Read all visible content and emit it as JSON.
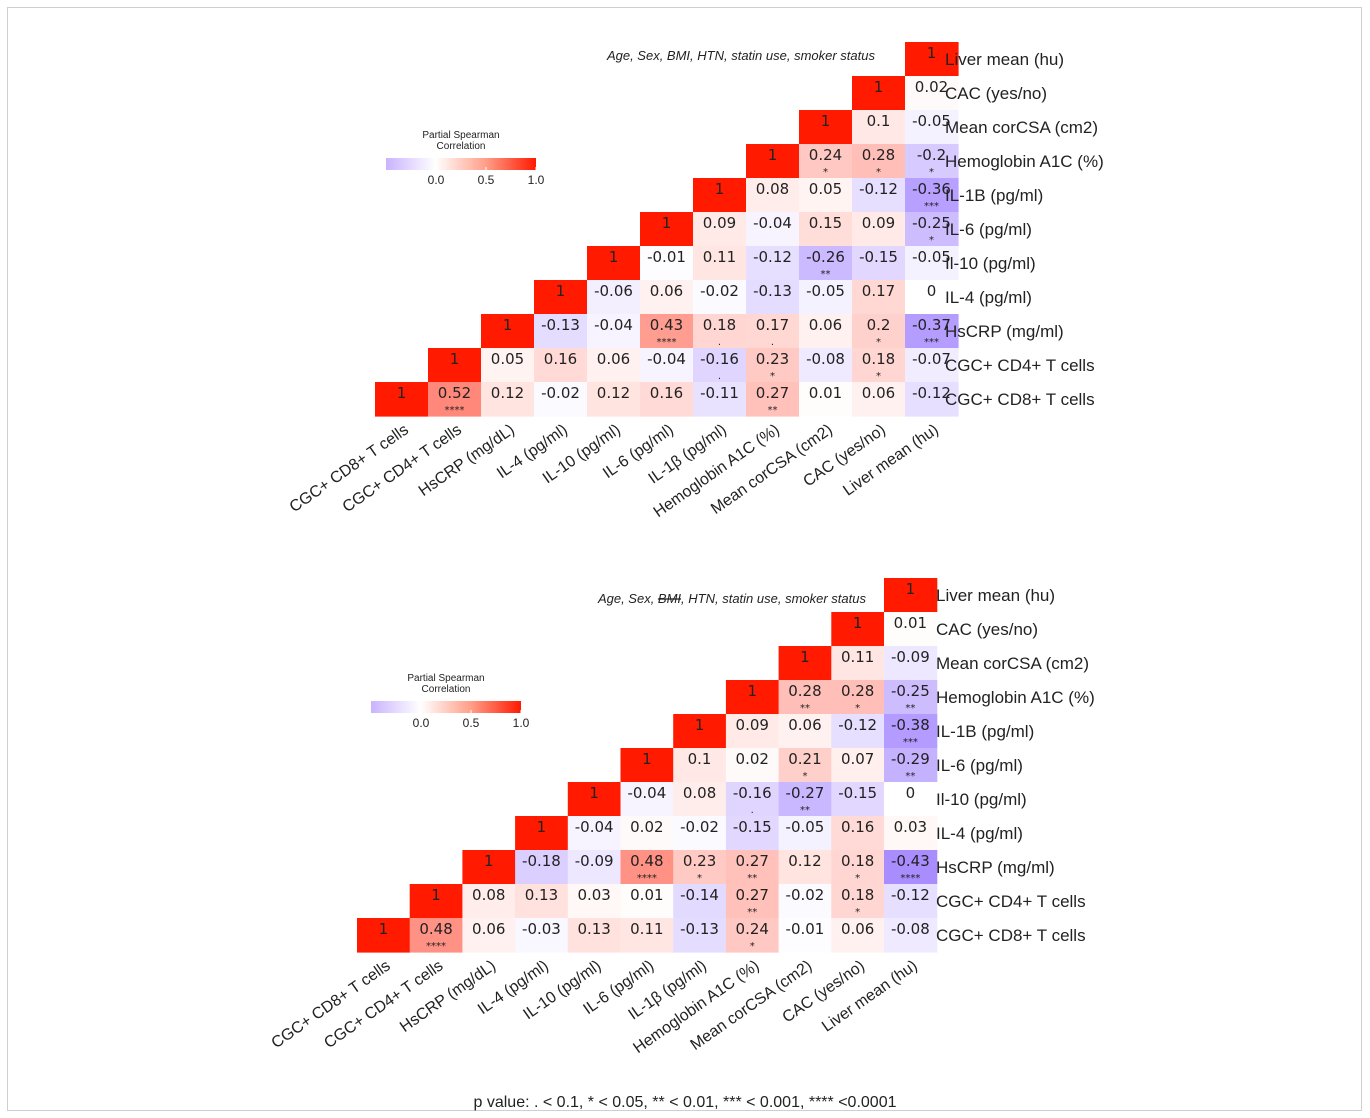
{
  "footnote": "p value:    . < 0.1, * < 0.05, ** < 0.01, *** < 0.001, **** <0.0001",
  "colors": {
    "low": "#9b7bff",
    "mid": "#ffffff",
    "high": "#ff1a00"
  },
  "chart_data": [
    {
      "type": "heatmap",
      "title": "",
      "covariates": {
        "prefix": "Age, Sex, ",
        "struck": "",
        "bmi": "BMI",
        "suffix": ", HTN, statin use, smoker status"
      },
      "legend": {
        "title_lines": [
          "Partial Spearman",
          "Correlation"
        ],
        "ticks": [
          "0.0",
          "0.5",
          "1.0"
        ],
        "range": [
          -0.5,
          1.0
        ]
      },
      "row_labels": [
        "Liver mean (hu)",
        "CAC (yes/no)",
        "Mean corCSA (cm2)",
        "Hemoglobin A1C (%)",
        "IL-1B (pg/ml)",
        "IL-6 (pg/ml)",
        "Il-10 (pg/ml)",
        "IL-4 (pg/ml)",
        "HsCRP (mg/ml)",
        "CGC+ CD4+ T cells",
        "CGC+ CD8+ T cells"
      ],
      "col_labels": [
        "CGC+ CD8+ T cells",
        "CGC+ CD4+ T cells",
        "HsCRP (mg/dL)",
        "IL-4 (pg/ml)",
        "IL-10 (pg/ml)",
        "IL-6 (pg/ml)",
        "IL-1β (pg/ml)",
        "Hemoglobin A1C (%)",
        "Mean corCSA (cm2)",
        "CAC (yes/no)",
        "Liver mean (hu)"
      ],
      "values": [
        [
          null,
          null,
          null,
          null,
          null,
          null,
          null,
          null,
          null,
          null,
          1
        ],
        [
          null,
          null,
          null,
          null,
          null,
          null,
          null,
          null,
          null,
          1,
          0.02
        ],
        [
          null,
          null,
          null,
          null,
          null,
          null,
          null,
          null,
          1,
          0.1,
          -0.05
        ],
        [
          null,
          null,
          null,
          null,
          null,
          null,
          null,
          1,
          0.24,
          0.28,
          -0.2
        ],
        [
          null,
          null,
          null,
          null,
          null,
          null,
          1,
          0.08,
          0.05,
          -0.12,
          -0.36
        ],
        [
          null,
          null,
          null,
          null,
          null,
          1,
          0.09,
          -0.04,
          0.15,
          0.09,
          -0.25
        ],
        [
          null,
          null,
          null,
          null,
          1,
          -0.01,
          0.11,
          -0.12,
          -0.26,
          -0.15,
          -0.05
        ],
        [
          null,
          null,
          null,
          1,
          -0.06,
          0.06,
          -0.02,
          -0.13,
          -0.05,
          0.17,
          0
        ],
        [
          null,
          null,
          1,
          -0.13,
          -0.04,
          0.43,
          0.18,
          0.17,
          0.06,
          0.2,
          -0.37
        ],
        [
          null,
          1,
          0.05,
          0.16,
          0.06,
          -0.04,
          -0.16,
          0.23,
          -0.08,
          0.18,
          -0.07
        ],
        [
          1,
          0.52,
          0.12,
          -0.02,
          0.12,
          0.16,
          -0.11,
          0.27,
          0.01,
          0.06,
          -0.12
        ]
      ],
      "labels": [
        [
          null,
          null,
          null,
          null,
          null,
          null,
          null,
          null,
          null,
          null,
          "1"
        ],
        [
          null,
          null,
          null,
          null,
          null,
          null,
          null,
          null,
          null,
          "1",
          "0.02"
        ],
        [
          null,
          null,
          null,
          null,
          null,
          null,
          null,
          null,
          "1",
          "0.1",
          "-0.05"
        ],
        [
          null,
          null,
          null,
          null,
          null,
          null,
          null,
          "1",
          "0.24",
          "0.28",
          "-0.2"
        ],
        [
          null,
          null,
          null,
          null,
          null,
          null,
          "1",
          "0.08",
          "0.05",
          "-0.12",
          "-0.36"
        ],
        [
          null,
          null,
          null,
          null,
          null,
          "1",
          "0.09",
          "-0.04",
          "0.15",
          "0.09",
          "-0.25"
        ],
        [
          null,
          null,
          null,
          null,
          "1",
          "-0.01",
          "0.11",
          "-0.12",
          "-0.26",
          "-0.15",
          "-0.05"
        ],
        [
          null,
          null,
          null,
          "1",
          "-0.06",
          "0.06",
          "-0.02",
          "-0.13",
          "-0.05",
          "0.17",
          "0"
        ],
        [
          null,
          null,
          "1",
          "-0.13",
          "-0.04",
          "0.43",
          "0.18",
          "0.17",
          "0.06",
          "0.2",
          "-0.37"
        ],
        [
          null,
          "1",
          "0.05",
          "0.16",
          "0.06",
          "-0.04",
          "-0.16",
          "0.23",
          "-0.08",
          "0.18",
          "-0.07"
        ],
        [
          "1",
          "0.52",
          "0.12",
          "-0.02",
          "0.12",
          "0.16",
          "-0.11",
          "0.27",
          "0.01",
          "0.06",
          "-0.12"
        ]
      ],
      "significance": [
        [
          null,
          null,
          null,
          null,
          null,
          null,
          null,
          null,
          null,
          null,
          ""
        ],
        [
          null,
          null,
          null,
          null,
          null,
          null,
          null,
          null,
          null,
          "",
          ""
        ],
        [
          null,
          null,
          null,
          null,
          null,
          null,
          null,
          null,
          "",
          "",
          ""
        ],
        [
          null,
          null,
          null,
          null,
          null,
          null,
          null,
          "",
          "*",
          "*",
          "*"
        ],
        [
          null,
          null,
          null,
          null,
          null,
          null,
          "",
          "",
          "",
          "",
          "***"
        ],
        [
          null,
          null,
          null,
          null,
          null,
          "",
          "",
          "",
          "",
          "",
          "*"
        ],
        [
          null,
          null,
          null,
          null,
          "",
          "",
          "",
          "",
          "**",
          "",
          ""
        ],
        [
          null,
          null,
          null,
          "",
          "",
          "",
          "",
          "",
          "",
          "",
          ""
        ],
        [
          null,
          null,
          "",
          "",
          "",
          "****",
          ".",
          ".",
          "",
          "*",
          "***"
        ],
        [
          null,
          "",
          "",
          "",
          "",
          "",
          ".",
          "*",
          "",
          "*",
          ""
        ],
        [
          "",
          "****",
          "",
          "",
          "",
          "",
          "",
          "**",
          "",
          "",
          ""
        ]
      ]
    },
    {
      "type": "heatmap",
      "title": "",
      "covariates": {
        "prefix": "Age, Sex, ",
        "struck": "BMI",
        "bmi": "",
        "suffix": ", HTN, statin use, smoker status"
      },
      "legend": {
        "title_lines": [
          "Partial Spearman",
          "Correlation"
        ],
        "ticks": [
          "0.0",
          "0.5",
          "1.0"
        ],
        "range": [
          -0.5,
          1.0
        ]
      },
      "row_labels": [
        "Liver mean (hu)",
        "CAC (yes/no)",
        "Mean corCSA (cm2)",
        "Hemoglobin A1C (%)",
        "IL-1B (pg/ml)",
        "IL-6 (pg/ml)",
        "Il-10 (pg/ml)",
        "IL-4 (pg/ml)",
        "HsCRP (mg/ml)",
        "CGC+ CD4+ T cells",
        "CGC+ CD8+ T cells"
      ],
      "col_labels": [
        "CGC+ CD8+ T cells",
        "CGC+ CD4+ T cells",
        "HsCRP (mg/dL)",
        "IL-4 (pg/ml)",
        "IL-10 (pg/ml)",
        "IL-6 (pg/ml)",
        "IL-1β (pg/ml)",
        "Hemoglobin A1C (%)",
        "Mean corCSA (cm2)",
        "CAC (yes/no)",
        "Liver mean (hu)"
      ],
      "values": [
        [
          null,
          null,
          null,
          null,
          null,
          null,
          null,
          null,
          null,
          null,
          1
        ],
        [
          null,
          null,
          null,
          null,
          null,
          null,
          null,
          null,
          null,
          1,
          0.01
        ],
        [
          null,
          null,
          null,
          null,
          null,
          null,
          null,
          null,
          1,
          0.11,
          -0.09
        ],
        [
          null,
          null,
          null,
          null,
          null,
          null,
          null,
          1,
          0.28,
          0.28,
          -0.25
        ],
        [
          null,
          null,
          null,
          null,
          null,
          null,
          1,
          0.09,
          0.06,
          -0.12,
          -0.38
        ],
        [
          null,
          null,
          null,
          null,
          null,
          1,
          0.1,
          0.02,
          0.21,
          0.07,
          -0.29
        ],
        [
          null,
          null,
          null,
          null,
          1,
          -0.04,
          0.08,
          -0.16,
          -0.27,
          -0.15,
          0
        ],
        [
          null,
          null,
          null,
          1,
          -0.04,
          0.02,
          -0.02,
          -0.15,
          -0.05,
          0.16,
          0.03
        ],
        [
          null,
          null,
          1,
          -0.18,
          -0.09,
          0.48,
          0.23,
          0.27,
          0.12,
          0.18,
          -0.43
        ],
        [
          null,
          1,
          0.08,
          0.13,
          0.03,
          0.01,
          -0.14,
          0.27,
          -0.02,
          0.18,
          -0.12
        ],
        [
          1,
          0.48,
          0.06,
          -0.03,
          0.13,
          0.11,
          -0.13,
          0.24,
          -0.01,
          0.06,
          -0.08
        ]
      ],
      "labels": [
        [
          null,
          null,
          null,
          null,
          null,
          null,
          null,
          null,
          null,
          null,
          "1"
        ],
        [
          null,
          null,
          null,
          null,
          null,
          null,
          null,
          null,
          null,
          "1",
          "0.01"
        ],
        [
          null,
          null,
          null,
          null,
          null,
          null,
          null,
          null,
          "1",
          "0.11",
          "-0.09"
        ],
        [
          null,
          null,
          null,
          null,
          null,
          null,
          null,
          "1",
          "0.28",
          "0.28",
          "-0.25"
        ],
        [
          null,
          null,
          null,
          null,
          null,
          null,
          "1",
          "0.09",
          "0.06",
          "-0.12",
          "-0.38"
        ],
        [
          null,
          null,
          null,
          null,
          null,
          "1",
          "0.1",
          "0.02",
          "0.21",
          "0.07",
          "-0.29"
        ],
        [
          null,
          null,
          null,
          null,
          "1",
          "-0.04",
          "0.08",
          "-0.16",
          "-0.27",
          "-0.15",
          "0"
        ],
        [
          null,
          null,
          null,
          "1",
          "-0.04",
          "0.02",
          "-0.02",
          "-0.15",
          "-0.05",
          "0.16",
          "0.03"
        ],
        [
          null,
          null,
          "1",
          "-0.18",
          "-0.09",
          "0.48",
          "0.23",
          "0.27",
          "0.12",
          "0.18",
          "-0.43"
        ],
        [
          null,
          "1",
          "0.08",
          "0.13",
          "0.03",
          "0.01",
          "-0.14",
          "0.27",
          "-0.02",
          "0.18",
          "-0.12"
        ],
        [
          "1",
          "0.48",
          "0.06",
          "-0.03",
          "0.13",
          "0.11",
          "-0.13",
          "0.24",
          "-0.01",
          "0.06",
          "-0.08"
        ]
      ],
      "significance": [
        [
          null,
          null,
          null,
          null,
          null,
          null,
          null,
          null,
          null,
          null,
          ""
        ],
        [
          null,
          null,
          null,
          null,
          null,
          null,
          null,
          null,
          null,
          "",
          ""
        ],
        [
          null,
          null,
          null,
          null,
          null,
          null,
          null,
          null,
          "",
          "",
          ""
        ],
        [
          null,
          null,
          null,
          null,
          null,
          null,
          null,
          "",
          "**",
          "*",
          "**"
        ],
        [
          null,
          null,
          null,
          null,
          null,
          null,
          "",
          "",
          "",
          "",
          "***"
        ],
        [
          null,
          null,
          null,
          null,
          null,
          "",
          "",
          "",
          "*",
          "",
          "**"
        ],
        [
          null,
          null,
          null,
          null,
          "",
          "",
          "",
          ".",
          "**",
          "",
          ""
        ],
        [
          null,
          null,
          null,
          "",
          "",
          "",
          "",
          "",
          "",
          "",
          ""
        ],
        [
          null,
          null,
          "",
          "",
          "",
          "****",
          "*",
          "**",
          "",
          "*",
          "****"
        ],
        [
          null,
          "",
          "",
          "",
          "",
          "",
          "",
          "**",
          "",
          "*",
          ""
        ],
        [
          "",
          "****",
          "",
          "",
          "",
          "",
          "",
          "*",
          "",
          "",
          ""
        ]
      ]
    }
  ]
}
